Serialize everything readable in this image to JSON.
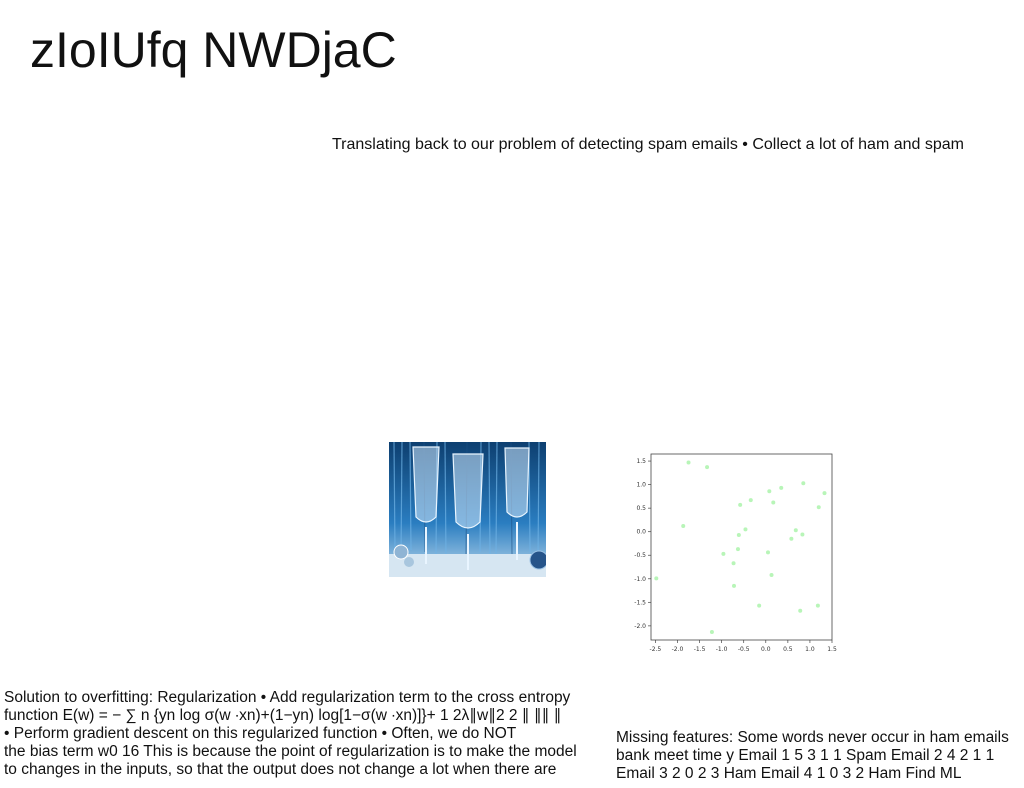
{
  "page": {
    "title": "zIoIUfq NWDjaC",
    "subtitle": "Translating back to our problem of detecting spam emails • Collect a lot of ham and spam"
  },
  "image": {
    "subject": "champagne glasses in front of a blue tinsel curtain"
  },
  "colors": {
    "scatter_point": "#b8f5b8",
    "photo_blue": "#1f6fb0"
  },
  "chart_data": {
    "type": "scatter",
    "title": "",
    "xlabel": "",
    "ylabel": "",
    "xlim": [
      -2.6,
      1.5
    ],
    "ylim": [
      -2.3,
      1.65
    ],
    "x_ticks": [
      "-2.5",
      "-2.0",
      "-1.5",
      "-1.0",
      "-0.5",
      "0.0",
      "0.5",
      "1.0",
      "1.5"
    ],
    "y_ticks": [
      "1.5",
      "1.0",
      "0.5",
      "0.0",
      "-0.5",
      "-1.0",
      "-1.5",
      "-2.0"
    ],
    "grid": false,
    "series": [
      {
        "points": [
          [
            -1.75,
            1.47
          ],
          [
            -1.33,
            1.37
          ],
          [
            -1.87,
            0.12
          ],
          [
            -2.48,
            -0.99
          ],
          [
            -1.22,
            -2.13
          ],
          [
            -0.96,
            -0.47
          ],
          [
            -0.73,
            -0.67
          ],
          [
            -0.72,
            -1.15
          ],
          [
            -0.63,
            -0.37
          ],
          [
            -0.61,
            -0.07
          ],
          [
            -0.58,
            0.57
          ],
          [
            -0.46,
            0.05
          ],
          [
            -0.34,
            0.67
          ],
          [
            -0.15,
            -1.57
          ],
          [
            0.05,
            -0.44
          ],
          [
            0.08,
            0.86
          ],
          [
            0.13,
            -0.92
          ],
          [
            0.17,
            0.62
          ],
          [
            0.35,
            0.93
          ],
          [
            0.58,
            -0.15
          ],
          [
            0.68,
            0.03
          ],
          [
            0.78,
            -1.68
          ],
          [
            0.83,
            -0.06
          ],
          [
            0.85,
            1.03
          ],
          [
            1.18,
            -1.57
          ],
          [
            1.2,
            0.52
          ],
          [
            1.33,
            0.82
          ]
        ]
      }
    ]
  },
  "body_left": [
    "Solution to overfitting: Regularization • Add regularization term to the cross entropy",
    "function E(w) = − ∑ n {yn log σ(w ∙xn)+(1−yn) log[1−σ(w ∙xn)]}+ 1 2λ∥w∥2 2 ∥ ∥∥ ∥",
    "• Perform gradient descent on this regularized function • Often, we do NOT",
    "the bias term w0 16 This is because the point of regularization is to make the model",
    "to changes in the inputs, so that the output does not change a lot when there are"
  ],
  "body_right": [
    "Missing features: Some words never occur in ham emails",
    "bank meet time y Email 1 5 3 1 1 Spam Email 2 4 2 1 1",
    "Email 3 2 0 2 3 Ham Email 4 1 0 3 2 Ham Find ML"
  ]
}
